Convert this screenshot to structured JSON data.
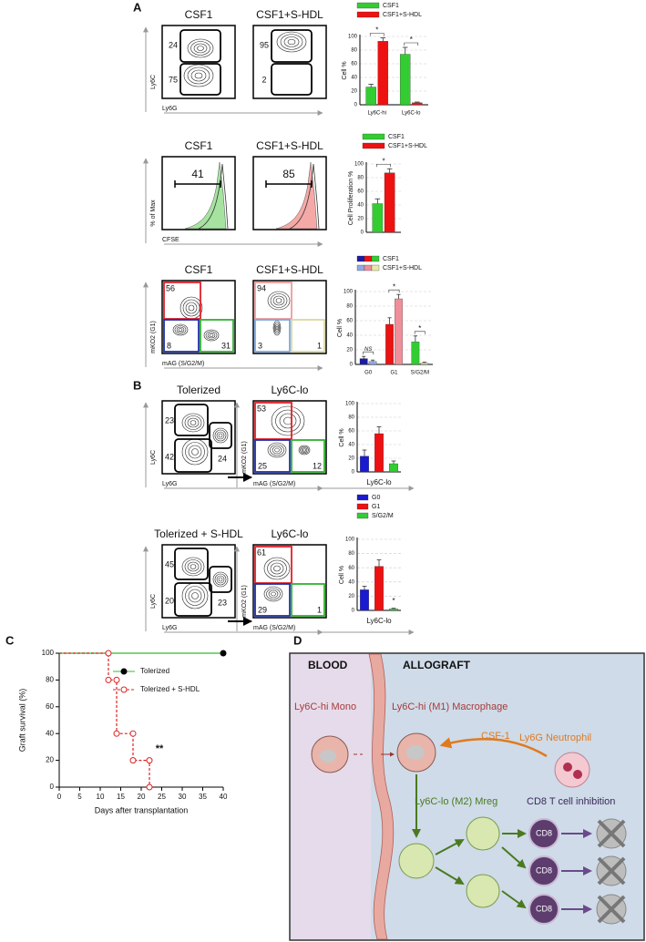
{
  "panel_labels": [
    "A",
    "B",
    "C",
    "D"
  ],
  "flow_plots": [
    {
      "title": "CSF1",
      "type": "contour",
      "gates": [
        24,
        75
      ],
      "y_label": "Ly6C",
      "x_label": "Ly6G"
    },
    {
      "title": "CSF1+S-HDL",
      "type": "contour",
      "gates": [
        95,
        2
      ]
    },
    {
      "title": "CSF1",
      "type": "histogram",
      "gates": [
        41
      ],
      "color": "#a6e3a0",
      "y_label": "% of Max",
      "x_label": "CFSE"
    },
    {
      "title": "CSF1+S-HDL",
      "type": "histogram",
      "gates": [
        85
      ],
      "color": "#f5a9a6"
    },
    {
      "title": "CSF1",
      "type": "contour",
      "gates": [
        56,
        8,
        31
      ],
      "gate_colors": [
        "#e0202a",
        "#1f2fa8",
        "#30b030"
      ],
      "y_label": "mKO2 (G1)",
      "x_label": "mAG (S/G2/M)"
    },
    {
      "title": "CSF1+S-HDL",
      "type": "contour",
      "gates": [
        94,
        3,
        1
      ],
      "gate_colors": [
        "#ef9a9a",
        "#7aa8e0",
        "#d8d8a0"
      ]
    },
    {
      "title": "Tolerized",
      "type": "contour",
      "gates": [
        23,
        42,
        24
      ],
      "y_label": "Ly6C",
      "x_label": "Ly6G"
    },
    {
      "title": "Ly6C-lo",
      "type": "contour",
      "gates": [
        53,
        25,
        12
      ],
      "gate_colors": [
        "#e0202a",
        "#1f2fa8",
        "#30b030"
      ],
      "y_label": "mKO2 (G1)",
      "x_label": "mAG (S/G2/M)"
    },
    {
      "title": "Tolerized + S-HDL",
      "type": "contour",
      "gates": [
        45,
        20,
        23
      ],
      "y_label": "Ly6C",
      "x_label": "Ly6G"
    },
    {
      "title": "Ly6C-lo",
      "type": "contour",
      "gates": [
        61,
        29,
        1
      ],
      "gate_colors": [
        "#e0202a",
        "#1f2fa8",
        "#30b030"
      ],
      "y_label": "mKO2 (G1)",
      "x_label": "mAG (S/G2/M)"
    }
  ],
  "chart_data": [
    {
      "type": "bar",
      "y_label": "Cell %",
      "categories": [
        "Ly6C-hi",
        "Ly6C-lo"
      ],
      "ylim": [
        0,
        100
      ],
      "yticks": [
        0,
        20,
        40,
        60,
        80,
        100
      ],
      "grid": true,
      "series": [
        {
          "name": "CSF1",
          "color": "#33cc33",
          "values": [
            26,
            74
          ],
          "errors": [
            4,
            10
          ]
        },
        {
          "name": "CSF1+S-HDL",
          "color": "#ee1111",
          "values": [
            93,
            3
          ],
          "errors": [
            5,
            1
          ]
        }
      ],
      "annotations": [
        {
          "text": "*",
          "category": 0
        },
        {
          "text": "*",
          "category": 1
        }
      ]
    },
    {
      "type": "bar",
      "y_label": "Cell Proliferation %",
      "categories": [
        null
      ],
      "ylim": [
        0,
        100
      ],
      "yticks": [
        0,
        20,
        40,
        60,
        80,
        100
      ],
      "grid": true,
      "series": [
        {
          "name": "CSF1",
          "color": "#33cc33",
          "values": [
            42
          ],
          "errors": [
            7
          ]
        },
        {
          "name": "CSF1+S-HDL",
          "color": "#ee1111",
          "values": [
            87
          ],
          "errors": [
            6
          ]
        }
      ],
      "annotations": [
        {
          "text": "*",
          "category": 0
        }
      ]
    },
    {
      "type": "bar",
      "y_label": "Cell %",
      "categories": [
        "G0",
        "G1",
        "S/G2/M"
      ],
      "ylim": [
        0,
        100
      ],
      "yticks": [
        0,
        20,
        40,
        60,
        80,
        100
      ],
      "grid": true,
      "series": [
        {
          "name": "CSF1",
          "colors": [
            "#1a1aa6",
            "#ee1111",
            "#33cc33"
          ],
          "values": [
            8,
            55,
            31
          ],
          "errors": [
            3,
            9,
            8
          ]
        },
        {
          "name": "CSF1+S-HDL",
          "colors": [
            "#8fa8e8",
            "#f08e9a",
            "#e8e8a8"
          ],
          "values": [
            4,
            90,
            2
          ],
          "errors": [
            2,
            6,
            1
          ]
        }
      ],
      "annotations": [
        {
          "text": "NS",
          "category": 0
        },
        {
          "text": "*",
          "category": 1
        },
        {
          "text": "*",
          "category": 2
        }
      ]
    },
    {
      "type": "bar",
      "y_label": "Cell %",
      "x_label": "Ly6C-lo",
      "ylim": [
        0,
        100
      ],
      "yticks": [
        0,
        20,
        40,
        60,
        80,
        100
      ],
      "grid": true,
      "colors": [
        "#1a1ad0",
        "#ee1111",
        "#33cc33"
      ],
      "values": [
        23,
        56,
        12
      ],
      "errors": [
        9,
        10,
        4
      ]
    },
    {
      "type": "bar",
      "y_label": "Cell %",
      "x_label": "Ly6C-lo",
      "ylim": [
        0,
        100
      ],
      "yticks": [
        0,
        20,
        40,
        60,
        80,
        100
      ],
      "grid": true,
      "categories": [
        "G0",
        "G1",
        "S/G2/M"
      ],
      "colors": [
        "#1a1ad0",
        "#ee1111",
        "#33cc33"
      ],
      "values": [
        29,
        62,
        2
      ],
      "errors": [
        5,
        9,
        1
      ],
      "annotations": [
        {
          "text": "*",
          "category": 2
        }
      ]
    },
    {
      "type": "line",
      "x_label": "Days after transplantation",
      "y_label": "Graft survival (%)",
      "xlim": [
        0,
        40
      ],
      "xticks": [
        0,
        5,
        10,
        15,
        20,
        25,
        30,
        35,
        40
      ],
      "ylim": [
        0,
        100
      ],
      "yticks": [
        0,
        20,
        40,
        60,
        80,
        100
      ],
      "series": [
        {
          "name": "Tolerized",
          "color": "#33bb33",
          "marker": "filled",
          "line_style": "solid",
          "x": [
            0,
            40
          ],
          "values": [
            100,
            100
          ]
        },
        {
          "name": "Tolerized + S-HDL",
          "color": "#dd2222",
          "marker": "open",
          "line_style": "dashed",
          "x": [
            0,
            12,
            12,
            14,
            14,
            18,
            18,
            22,
            22
          ],
          "values": [
            100,
            100,
            80,
            80,
            40,
            40,
            20,
            20,
            0
          ]
        }
      ],
      "annotations": [
        {
          "text": "**"
        }
      ]
    }
  ],
  "diagram": {
    "regions": [
      "BLOOD",
      "ALLOGRAFT"
    ],
    "labels": [
      "Ly6C-hi Mono",
      "Ly6C-hi (M1) Macrophage",
      "CSF-1",
      "Ly6G Neutrophil",
      "Ly6C-lo  (M2) Mreg",
      "CD8 T cell inhibition"
    ],
    "cells": [
      "CD8",
      "CD8",
      "CD8"
    ]
  }
}
